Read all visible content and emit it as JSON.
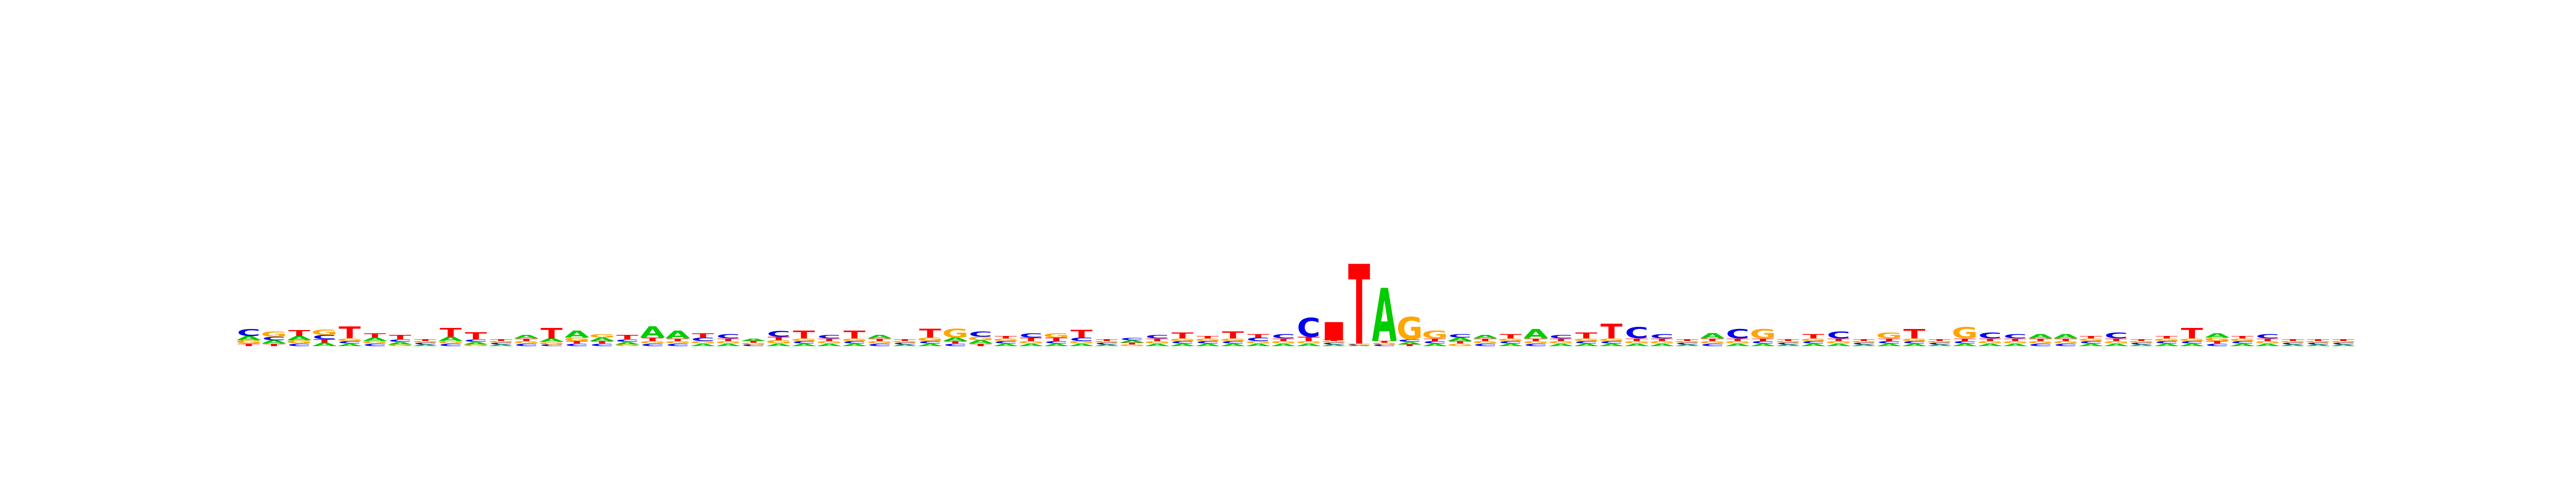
{
  "chart_data": {
    "type": "sequence-logo",
    "alphabet": [
      "A",
      "C",
      "G",
      "T"
    ],
    "colors": {
      "A": "#00cc00",
      "C": "#0000ee",
      "G": "#ffa500",
      "T": "#ff0000"
    },
    "ylim": [
      0,
      2
    ],
    "position_count": 84,
    "stacks": [
      {
        "A": 0.05,
        "C": 0.08,
        "G": 0.04,
        "T": 0.03
      },
      {
        "A": 0.04,
        "C": 0.04,
        "G": 0.06,
        "T": 0.03
      },
      {
        "A": 0.05,
        "C": 0.03,
        "G": 0.04,
        "T": 0.07
      },
      {
        "A": 0.04,
        "C": 0.05,
        "G": 0.06,
        "T": 0.04
      },
      {
        "A": 0.03,
        "C": 0.03,
        "G": 0.03,
        "T": 0.14
      },
      {
        "A": 0.04,
        "C": 0.03,
        "G": 0.03,
        "T": 0.05
      },
      {
        "A": 0.03,
        "C": 0.03,
        "G": 0.02,
        "T": 0.05
      },
      {
        "A": 0.02,
        "C": 0.02,
        "G": 0.02,
        "T": 0.02
      },
      {
        "A": 0.05,
        "C": 0.03,
        "G": 0.03,
        "T": 0.1
      },
      {
        "A": 0.03,
        "C": 0.03,
        "G": 0.02,
        "T": 0.08
      },
      {
        "A": 0.02,
        "C": 0.02,
        "G": 0.02,
        "T": 0.02
      },
      {
        "A": 0.04,
        "C": 0.03,
        "G": 0.03,
        "T": 0.03
      },
      {
        "A": 0.04,
        "C": 0.02,
        "G": 0.03,
        "T": 0.12
      },
      {
        "A": 0.08,
        "C": 0.03,
        "G": 0.04,
        "T": 0.03
      },
      {
        "A": 0.04,
        "C": 0.03,
        "G": 0.04,
        "T": 0.03
      },
      {
        "A": 0.03,
        "C": 0.03,
        "G": 0.02,
        "T": 0.05
      },
      {
        "A": 0.13,
        "C": 0.03,
        "G": 0.03,
        "T": 0.04
      },
      {
        "A": 0.09,
        "C": 0.03,
        "G": 0.03,
        "T": 0.03
      },
      {
        "A": 0.03,
        "C": 0.04,
        "G": 0.03,
        "T": 0.05
      },
      {
        "A": 0.03,
        "C": 0.05,
        "G": 0.03,
        "T": 0.03
      },
      {
        "A": 0.03,
        "C": 0.02,
        "G": 0.02,
        "T": 0.02
      },
      {
        "A": 0.03,
        "C": 0.07,
        "G": 0.04,
        "T": 0.04
      },
      {
        "A": 0.03,
        "C": 0.03,
        "G": 0.03,
        "T": 0.09
      },
      {
        "A": 0.03,
        "C": 0.04,
        "G": 0.03,
        "T": 0.03
      },
      {
        "A": 0.03,
        "C": 0.03,
        "G": 0.03,
        "T": 0.09
      },
      {
        "A": 0.04,
        "C": 0.03,
        "G": 0.03,
        "T": 0.03
      },
      {
        "A": 0.02,
        "C": 0.02,
        "G": 0.02,
        "T": 0.02
      },
      {
        "A": 0.03,
        "C": 0.03,
        "G": 0.04,
        "T": 0.1
      },
      {
        "A": 0.04,
        "C": 0.03,
        "G": 0.1,
        "T": 0.03
      },
      {
        "A": 0.04,
        "C": 0.06,
        "G": 0.04,
        "T": 0.03
      },
      {
        "A": 0.03,
        "C": 0.03,
        "G": 0.03,
        "T": 0.03
      },
      {
        "A": 0.03,
        "C": 0.05,
        "G": 0.03,
        "T": 0.04
      },
      {
        "A": 0.03,
        "C": 0.03,
        "G": 0.05,
        "T": 0.04
      },
      {
        "A": 0.03,
        "C": 0.04,
        "G": 0.03,
        "T": 0.09
      },
      {
        "A": 0.02,
        "C": 0.02,
        "G": 0.02,
        "T": 0.02
      },
      {
        "A": 0.03,
        "C": 0.03,
        "G": 0.02,
        "T": 0.02
      },
      {
        "A": 0.03,
        "C": 0.04,
        "G": 0.03,
        "T": 0.03
      },
      {
        "A": 0.03,
        "C": 0.03,
        "G": 0.03,
        "T": 0.07
      },
      {
        "A": 0.03,
        "C": 0.03,
        "G": 0.03,
        "T": 0.03
      },
      {
        "A": 0.03,
        "C": 0.03,
        "G": 0.03,
        "T": 0.08
      },
      {
        "A": 0.03,
        "C": 0.04,
        "G": 0.03,
        "T": 0.04
      },
      {
        "A": 0.03,
        "C": 0.05,
        "G": 0.03,
        "T": 0.03
      },
      {
        "A": 0.03,
        "C": 0.22,
        "G": 0.03,
        "T": 0.05
      },
      {
        "A": 0.02,
        "C": 0.02,
        "G": 0.02,
        "T": 0.02
      },
      {
        "A": 0.01,
        "C": 0.01,
        "G": 0.01,
        "T": 0.93
      },
      {
        "A": 0.62,
        "C": 0.02,
        "G": 0.02,
        "T": 0.02
      },
      {
        "A": 0.03,
        "C": 0.03,
        "G": 0.26,
        "T": 0.02
      },
      {
        "A": 0.03,
        "C": 0.03,
        "G": 0.09,
        "T": 0.03
      },
      {
        "A": 0.04,
        "C": 0.04,
        "G": 0.03,
        "T": 0.03
      },
      {
        "A": 0.04,
        "C": 0.03,
        "G": 0.03,
        "T": 0.03
      },
      {
        "A": 0.03,
        "C": 0.03,
        "G": 0.03,
        "T": 0.05
      },
      {
        "A": 0.11,
        "C": 0.03,
        "G": 0.03,
        "T": 0.03
      },
      {
        "A": 0.03,
        "C": 0.04,
        "G": 0.03,
        "T": 0.03
      },
      {
        "A": 0.03,
        "C": 0.03,
        "G": 0.03,
        "T": 0.07
      },
      {
        "A": 0.03,
        "C": 0.03,
        "G": 0.03,
        "T": 0.17
      },
      {
        "A": 0.03,
        "C": 0.13,
        "G": 0.03,
        "T": 0.03
      },
      {
        "A": 0.03,
        "C": 0.05,
        "G": 0.03,
        "T": 0.03
      },
      {
        "A": 0.02,
        "C": 0.02,
        "G": 0.02,
        "T": 0.02
      },
      {
        "A": 0.06,
        "C": 0.03,
        "G": 0.03,
        "T": 0.03
      },
      {
        "A": 0.03,
        "C": 0.11,
        "G": 0.03,
        "T": 0.03
      },
      {
        "A": 0.03,
        "C": 0.03,
        "G": 0.11,
        "T": 0.03
      },
      {
        "A": 0.02,
        "C": 0.02,
        "G": 0.02,
        "T": 0.02
      },
      {
        "A": 0.03,
        "C": 0.03,
        "G": 0.03,
        "T": 0.05
      },
      {
        "A": 0.03,
        "C": 0.08,
        "G": 0.03,
        "T": 0.03
      },
      {
        "A": 0.02,
        "C": 0.02,
        "G": 0.02,
        "T": 0.02
      },
      {
        "A": 0.03,
        "C": 0.03,
        "G": 0.07,
        "T": 0.03
      },
      {
        "A": 0.03,
        "C": 0.03,
        "G": 0.03,
        "T": 0.11
      },
      {
        "A": 0.02,
        "C": 0.02,
        "G": 0.02,
        "T": 0.02
      },
      {
        "A": 0.03,
        "C": 0.03,
        "G": 0.13,
        "T": 0.03
      },
      {
        "A": 0.03,
        "C": 0.07,
        "G": 0.03,
        "T": 0.03
      },
      {
        "A": 0.03,
        "C": 0.05,
        "G": 0.03,
        "T": 0.03
      },
      {
        "A": 0.05,
        "C": 0.03,
        "G": 0.03,
        "T": 0.03
      },
      {
        "A": 0.05,
        "C": 0.03,
        "G": 0.03,
        "T": 0.03
      },
      {
        "A": 0.03,
        "C": 0.03,
        "G": 0.03,
        "T": 0.03
      },
      {
        "A": 0.03,
        "C": 0.07,
        "G": 0.03,
        "T": 0.03
      },
      {
        "A": 0.02,
        "C": 0.02,
        "G": 0.02,
        "T": 0.02
      },
      {
        "A": 0.03,
        "C": 0.03,
        "G": 0.03,
        "T": 0.03
      },
      {
        "A": 0.03,
        "C": 0.03,
        "G": 0.03,
        "T": 0.12
      },
      {
        "A": 0.05,
        "C": 0.03,
        "G": 0.04,
        "T": 0.03
      },
      {
        "A": 0.03,
        "C": 0.03,
        "G": 0.03,
        "T": 0.03
      },
      {
        "A": 0.03,
        "C": 0.05,
        "G": 0.03,
        "T": 0.03
      },
      {
        "A": 0.02,
        "C": 0.02,
        "G": 0.02,
        "T": 0.02
      },
      {
        "A": 0.02,
        "C": 0.02,
        "G": 0.02,
        "T": 0.02
      },
      {
        "A": 0.02,
        "C": 0.02,
        "G": 0.02,
        "T": 0.02
      }
    ],
    "annotations": [
      {
        "position": 44,
        "mark": "square",
        "color": "#ff0000"
      }
    ],
    "title": "",
    "xlabel": "",
    "ylabel": ""
  }
}
